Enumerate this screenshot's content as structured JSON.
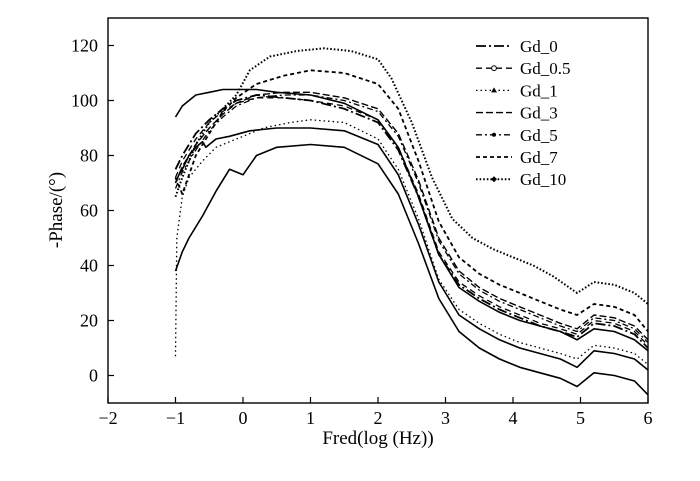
{
  "chart_data": {
    "type": "line",
    "title": "",
    "xlabel": "Fred(log (Hz))",
    "ylabel": "-Phase/(°)",
    "xlim": [
      -2,
      6
    ],
    "ylim": [
      -10,
      130
    ],
    "xticks": [
      -2,
      -1,
      0,
      1,
      2,
      3,
      4,
      5,
      6
    ],
    "xtick_labels": [
      "−2",
      "−1",
      "0",
      "1",
      "2",
      "3",
      "4",
      "5",
      "6"
    ],
    "yticks": [
      0,
      20,
      40,
      60,
      80,
      100,
      120
    ],
    "ytick_labels": [
      "0",
      "20",
      "40",
      "60",
      "80",
      "100",
      "120"
    ],
    "grid": false,
    "legend_position": "top-right",
    "series": [
      {
        "name": "Gd_0",
        "style": "dashdot",
        "x": [
          -1.0,
          -0.9,
          -0.7,
          -0.5,
          -0.3,
          -0.1,
          0.2,
          0.6,
          1.0,
          1.5,
          2.0,
          2.3,
          2.6,
          2.9,
          3.2,
          3.5,
          3.8,
          4.1,
          4.4,
          4.7,
          4.95,
          5.2,
          5.5,
          5.8,
          6.0
        ],
        "y": [
          75,
          80,
          88,
          93,
          97,
          100,
          102,
          101,
          100,
          97,
          92,
          82,
          65,
          44,
          33,
          28,
          24,
          21,
          18,
          16,
          14,
          19,
          18,
          15,
          10
        ]
      },
      {
        "name": "Gd_0.5",
        "style": "dash-circle",
        "x": [
          -1.0,
          -0.9,
          -0.7,
          -0.5,
          -0.3,
          -0.1,
          0.2,
          0.6,
          1.0,
          1.5,
          2.0,
          2.3,
          2.6,
          2.9,
          3.2,
          3.5,
          3.8,
          4.1,
          4.4,
          4.7,
          4.95,
          5.2,
          5.5,
          5.8,
          6.0
        ],
        "y": [
          72,
          78,
          86,
          92,
          96,
          99,
          101,
          101,
          100,
          98,
          93,
          83,
          66,
          45,
          34,
          29,
          25,
          22,
          19,
          17,
          15,
          20,
          19,
          16,
          11
        ]
      },
      {
        "name": "Gd_1",
        "style": "dotted",
        "x": [
          -1.0,
          -0.98,
          -0.9,
          -0.8,
          -0.6,
          -0.4,
          -0.2,
          0.0,
          0.3,
          0.7,
          1.0,
          1.5,
          2.0,
          2.3,
          2.6,
          2.9,
          3.2,
          3.5,
          3.8,
          4.1,
          4.4,
          4.7,
          4.95,
          5.2,
          5.5,
          5.8,
          6.0
        ],
        "y": [
          7,
          50,
          65,
          72,
          78,
          83,
          85,
          87,
          90,
          92,
          93,
          92,
          86,
          75,
          57,
          35,
          24,
          19,
          15,
          12,
          10,
          8,
          6,
          11,
          10,
          8,
          4
        ]
      },
      {
        "name": "Gd_3",
        "style": "dashed",
        "x": [
          -1.0,
          -0.9,
          -0.7,
          -0.5,
          -0.3,
          -0.1,
          0.2,
          0.6,
          1.0,
          1.5,
          2.0,
          2.3,
          2.6,
          2.9,
          3.2,
          3.5,
          3.8,
          4.1,
          4.4,
          4.7,
          4.95,
          5.2,
          5.5,
          5.8,
          6.0
        ],
        "y": [
          70,
          76,
          84,
          90,
          95,
          99,
          102,
          103,
          103,
          101,
          97,
          88,
          71,
          50,
          38,
          32,
          28,
          25,
          22,
          19,
          17,
          22,
          21,
          18,
          13
        ]
      },
      {
        "name": "Gd_5",
        "style": "dash-dot-marker",
        "x": [
          -1.0,
          -0.9,
          -0.7,
          -0.5,
          -0.3,
          -0.1,
          0.2,
          0.6,
          1.0,
          1.5,
          2.0,
          2.3,
          2.6,
          2.9,
          3.2,
          3.5,
          3.8,
          4.1,
          4.4,
          4.7,
          4.95,
          5.2,
          5.5,
          5.8,
          6.0
        ],
        "y": [
          68,
          74,
          82,
          89,
          94,
          98,
          101,
          102,
          102,
          100,
          96,
          87,
          70,
          49,
          37,
          31,
          27,
          24,
          21,
          18,
          16,
          21,
          20,
          17,
          12
        ]
      },
      {
        "name": "Gd_7",
        "style": "dense-dashed",
        "x": [
          -1.0,
          -0.9,
          -0.7,
          -0.5,
          -0.3,
          -0.1,
          0.2,
          0.6,
          1.0,
          1.5,
          2.0,
          2.3,
          2.6,
          2.9,
          3.2,
          3.5,
          3.8,
          4.1,
          4.4,
          4.7,
          4.95,
          5.2,
          5.5,
          5.8,
          6.0
        ],
        "y": [
          72,
          66,
          80,
          88,
          96,
          101,
          106,
          109,
          111,
          110,
          106,
          97,
          78,
          56,
          43,
          37,
          33,
          30,
          27,
          24,
          22,
          26,
          25,
          22,
          16
        ]
      },
      {
        "name": "Gd_10",
        "style": "dotted-heavy",
        "x": [
          -1.0,
          -0.9,
          -0.7,
          -0.5,
          -0.3,
          -0.1,
          0.1,
          0.4,
          0.8,
          1.2,
          1.6,
          2.0,
          2.2,
          2.5,
          2.8,
          3.1,
          3.4,
          3.7,
          4.0,
          4.3,
          4.6,
          4.95,
          5.2,
          5.5,
          5.8,
          6.0
        ],
        "y": [
          65,
          72,
          84,
          92,
          97,
          102,
          111,
          116,
          118,
          119,
          118,
          115,
          108,
          92,
          72,
          57,
          50,
          46,
          43,
          40,
          36,
          30,
          34,
          33,
          30,
          26
        ]
      },
      {
        "name": "",
        "style": "solid",
        "x": [
          -1.0,
          -0.95,
          -0.9,
          -0.8,
          -0.7,
          -0.5,
          -0.3,
          -0.2,
          -0.05,
          0.2,
          0.5,
          1.0,
          1.5,
          2.0,
          2.3,
          2.6,
          2.9,
          3.2,
          3.5,
          3.8,
          4.1,
          4.4,
          4.7,
          4.95,
          5.2,
          5.5,
          5.8,
          6.0
        ],
        "y": [
          94,
          96,
          98,
          100,
          102,
          103,
          104,
          104,
          104,
          104,
          103,
          102,
          99,
          93,
          83,
          65,
          44,
          32,
          27,
          23,
          20,
          18,
          16,
          13,
          17,
          16,
          13,
          9
        ]
      },
      {
        "name": "",
        "style": "solid",
        "x": [
          -1.0,
          -0.95,
          -0.9,
          -0.8,
          -0.7,
          -0.6,
          -0.55,
          -0.4,
          -0.2,
          0.1,
          0.5,
          1.0,
          1.5,
          2.0,
          2.3,
          2.6,
          2.9,
          3.2,
          3.5,
          3.8,
          4.1,
          4.4,
          4.7,
          4.95,
          5.2,
          5.5,
          5.8,
          6.0
        ],
        "y": [
          70,
          73,
          75,
          80,
          83,
          85,
          83,
          86,
          87,
          89,
          90,
          90,
          89,
          84,
          73,
          55,
          34,
          22,
          17,
          13,
          10,
          8,
          6,
          3,
          9,
          8,
          6,
          2
        ]
      },
      {
        "name": "",
        "style": "solid",
        "x": [
          -1.0,
          -0.9,
          -0.8,
          -0.6,
          -0.4,
          -0.2,
          -0.1,
          0.0,
          0.2,
          0.5,
          1.0,
          1.5,
          2.0,
          2.3,
          2.6,
          2.9,
          3.2,
          3.5,
          3.8,
          4.1,
          4.4,
          4.7,
          4.95,
          5.2,
          5.5,
          5.8,
          6.0
        ],
        "y": [
          38,
          45,
          50,
          58,
          67,
          75,
          74,
          73,
          80,
          83,
          84,
          83,
          77,
          66,
          48,
          28,
          16,
          10,
          6,
          3,
          1,
          -1,
          -4,
          1,
          0,
          -2,
          -7
        ]
      }
    ]
  }
}
